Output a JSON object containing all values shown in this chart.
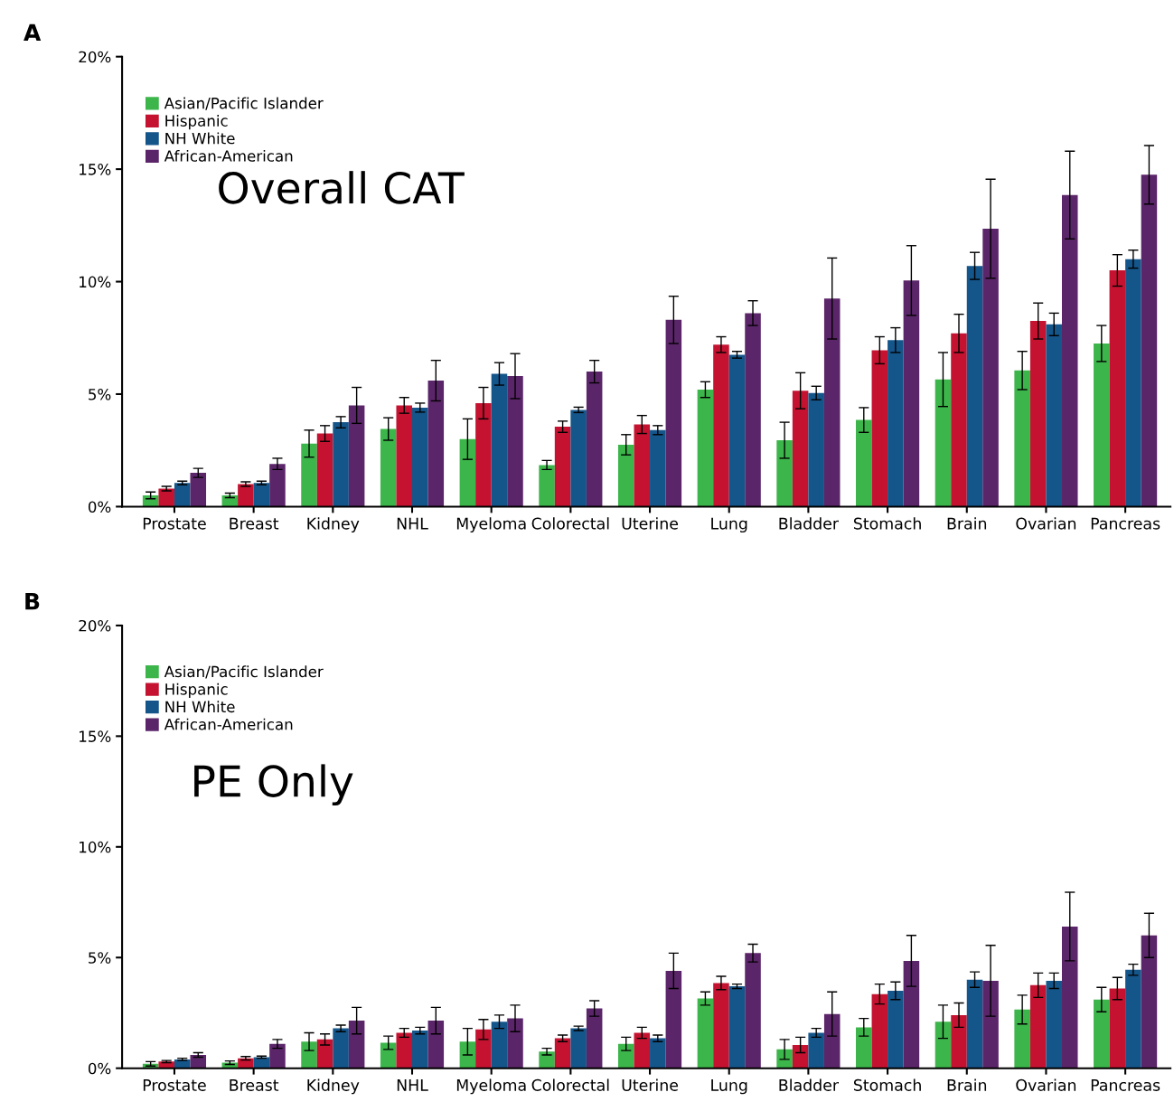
{
  "chart_data": [
    {
      "type": "bar",
      "title": "Overall CAT",
      "annotations": [
        "A"
      ],
      "legend": "top left",
      "grid": false,
      "categories": [
        "Prostate",
        "Breast",
        "Kidney",
        "NHL",
        "Myeloma",
        "Colorectal",
        "Uterine",
        "Lung",
        "Bladder",
        "Stomach",
        "Brain",
        "Ovarian",
        "Pancreas"
      ],
      "ylim": [
        0,
        20
      ],
      "yticks": [
        {
          "value": 0,
          "label": "0%"
        },
        {
          "value": 5,
          "label": "5%"
        },
        {
          "value": 10,
          "label": "10%"
        },
        {
          "value": 15,
          "label": "15%"
        },
        {
          "value": 20,
          "label": "20%"
        }
      ],
      "series": [
        {
          "name": "Asian/Pacific Islander",
          "color": "#3cb54a",
          "values": [
            0.5,
            0.5,
            2.8,
            3.45,
            3.0,
            1.85,
            2.75,
            5.2,
            2.95,
            3.85,
            5.65,
            6.05,
            7.25
          ],
          "errors": [
            0.15,
            0.1,
            0.6,
            0.5,
            0.9,
            0.2,
            0.45,
            0.35,
            0.8,
            0.55,
            1.2,
            0.85,
            0.8
          ]
        },
        {
          "name": "Hispanic",
          "color": "#c41230",
          "values": [
            0.8,
            1.0,
            3.25,
            4.5,
            4.6,
            3.55,
            3.65,
            7.2,
            5.15,
            6.95,
            7.7,
            8.25,
            10.5
          ],
          "errors": [
            0.1,
            0.1,
            0.35,
            0.35,
            0.7,
            0.25,
            0.4,
            0.35,
            0.8,
            0.6,
            0.85,
            0.8,
            0.7
          ]
        },
        {
          "name": "NH White",
          "color": "#14558a",
          "values": [
            1.05,
            1.05,
            3.75,
            4.4,
            5.9,
            4.3,
            3.4,
            6.75,
            5.05,
            7.4,
            10.7,
            8.1,
            11.0
          ],
          "errors": [
            0.08,
            0.08,
            0.25,
            0.2,
            0.5,
            0.12,
            0.2,
            0.15,
            0.3,
            0.55,
            0.6,
            0.5,
            0.4
          ]
        },
        {
          "name": "African-American",
          "color": "#5b2569",
          "values": [
            1.5,
            1.9,
            4.5,
            5.6,
            5.8,
            6.0,
            8.3,
            8.6,
            9.25,
            10.05,
            12.35,
            13.85,
            14.75
          ],
          "errors": [
            0.2,
            0.25,
            0.8,
            0.9,
            1.0,
            0.5,
            1.05,
            0.55,
            1.8,
            1.55,
            2.2,
            1.95,
            1.3
          ]
        }
      ]
    },
    {
      "type": "bar",
      "title": "PE Only",
      "annotations": [
        "B"
      ],
      "legend": "top left",
      "grid": false,
      "categories": [
        "Prostate",
        "Breast",
        "Kidney",
        "NHL",
        "Myeloma",
        "Colorectal",
        "Uterine",
        "Lung",
        "Bladder",
        "Stomach",
        "Brain",
        "Ovarian",
        "Pancreas"
      ],
      "ylim": [
        0,
        20
      ],
      "yticks": [
        {
          "value": 0,
          "label": "0%"
        },
        {
          "value": 5,
          "label": "5%"
        },
        {
          "value": 10,
          "label": "10%"
        },
        {
          "value": 15,
          "label": "15%"
        },
        {
          "value": 20,
          "label": "20%"
        }
      ],
      "series": [
        {
          "name": "Asian/Pacific Islander",
          "color": "#3cb54a",
          "values": [
            0.2,
            0.25,
            1.2,
            1.15,
            1.2,
            0.75,
            1.1,
            3.15,
            0.85,
            1.85,
            2.1,
            2.65,
            3.1
          ],
          "errors": [
            0.1,
            0.08,
            0.4,
            0.3,
            0.6,
            0.15,
            0.3,
            0.3,
            0.45,
            0.4,
            0.75,
            0.65,
            0.55
          ]
        },
        {
          "name": "Hispanic",
          "color": "#c41230",
          "values": [
            0.3,
            0.45,
            1.3,
            1.6,
            1.75,
            1.35,
            1.6,
            3.85,
            1.05,
            3.35,
            2.4,
            3.75,
            3.6
          ],
          "errors": [
            0.05,
            0.08,
            0.25,
            0.2,
            0.45,
            0.15,
            0.25,
            0.3,
            0.35,
            0.45,
            0.55,
            0.55,
            0.5
          ]
        },
        {
          "name": "NH White",
          "color": "#14558a",
          "values": [
            0.4,
            0.5,
            1.8,
            1.7,
            2.1,
            1.8,
            1.35,
            3.7,
            1.6,
            3.5,
            4.0,
            3.95,
            4.45
          ],
          "errors": [
            0.05,
            0.05,
            0.15,
            0.15,
            0.3,
            0.1,
            0.15,
            0.1,
            0.2,
            0.4,
            0.35,
            0.35,
            0.25
          ]
        },
        {
          "name": "African-American",
          "color": "#5b2569",
          "values": [
            0.6,
            1.1,
            2.15,
            2.15,
            2.25,
            2.7,
            4.4,
            5.2,
            2.45,
            4.85,
            3.95,
            6.4,
            6.0
          ],
          "errors": [
            0.1,
            0.2,
            0.6,
            0.6,
            0.6,
            0.35,
            0.8,
            0.4,
            1.0,
            1.15,
            1.6,
            1.55,
            1.0
          ]
        }
      ]
    }
  ]
}
